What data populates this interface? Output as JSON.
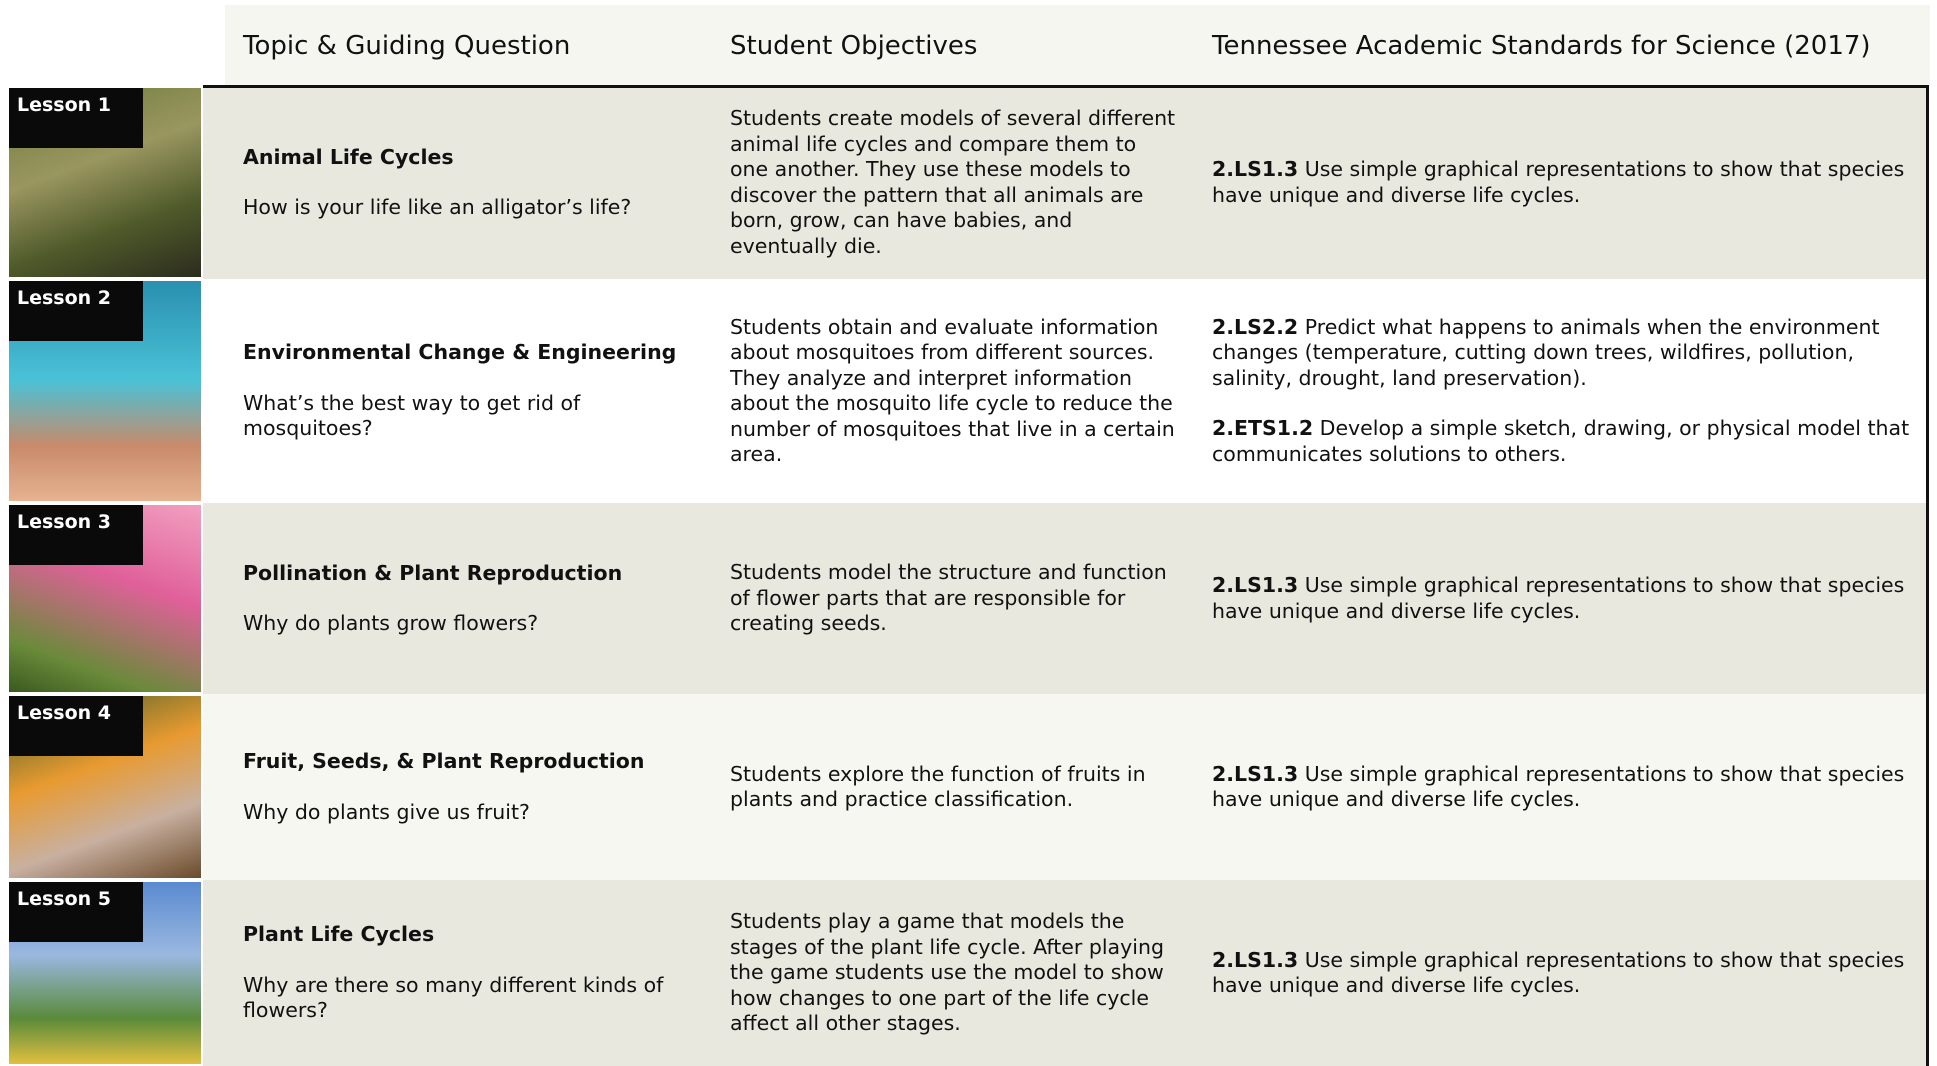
{
  "header": {
    "columns": [
      "Topic & Guiding Question",
      "Student Objectives",
      "Tennessee Academic Standards for Science (2017)"
    ]
  },
  "lessons": [
    {
      "label": "Lesson 1",
      "topic": "Animal Life Cycles",
      "question": "How is your life like an alligator’s life?",
      "objectives": "Students create models of several different animal life cycles and compare them to one another. They use these models to discover the pattern that all animals are born, grow, can have babies, and eventually die.",
      "standards": [
        {
          "code": "2.LS1.3",
          "text": "Use simple graphical representations to show that species have unique and diverse life cycles."
        }
      ]
    },
    {
      "label": "Lesson 2",
      "topic": "Environmental Change & Engineering",
      "question": "What’s the best way to get rid of mosquitoes?",
      "objectives": "Students obtain and evaluate information about mosquitoes from different sources. They analyze and interpret information about the mosquito life cycle to reduce the number of mosquitoes that live in a certain area.",
      "standards": [
        {
          "code": "2.LS2.2",
          "text": "Predict what happens to animals when the environment changes (temperature, cutting down trees, wildfires, pollution, salinity, drought, land preservation)."
        },
        {
          "code": "2.ETS1.2",
          "text": "Develop a simple sketch, drawing, or physical model that communicates solutions to others."
        }
      ]
    },
    {
      "label": "Lesson 3",
      "topic": "Pollination & Plant Reproduction",
      "question": "Why do plants grow flowers?",
      "objectives": "Students model the structure and function of flower parts that are responsible for creating seeds.",
      "standards": [
        {
          "code": "2.LS1.3",
          "text": "Use simple graphical representations to show that species have unique and diverse life cycles."
        }
      ]
    },
    {
      "label": "Lesson 4",
      "topic": "Fruit, Seeds, & Plant Reproduction",
      "question": "Why do plants give us fruit?",
      "objectives": "Students explore the function of fruits in plants and practice classification.",
      "standards": [
        {
          "code": "2.LS1.3",
          "text": "Use simple graphical representations to show that species have unique and diverse life cycles."
        }
      ]
    },
    {
      "label": "Lesson 5",
      "topic": "Plant Life Cycles",
      "question": "Why are there so many different kinds of flowers?",
      "objectives": "Students play a game that models the stages of the plant life cycle. After playing the game students use the model to show how changes to one part of the life cycle affect all other stages.",
      "standards": [
        {
          "code": "2.LS1.3",
          "text": "Use simple graphical representations to show that species have unique and diverse life cycles."
        }
      ]
    }
  ]
}
